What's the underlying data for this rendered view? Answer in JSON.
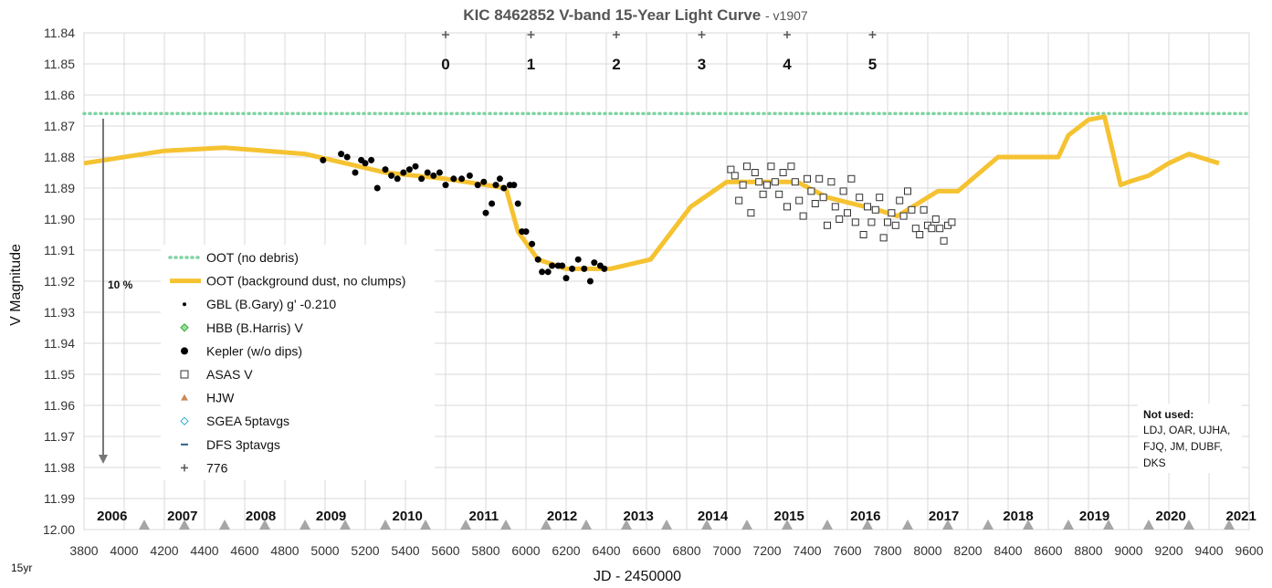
{
  "chart_data": {
    "type": "scatter",
    "title": "KIC 8462852 V-band 15-Year Light Curve",
    "title_suffix": "- v1907",
    "xlabel": "JD - 2450000",
    "ylabel": "V Magnitude",
    "xlim": [
      3800,
      9600
    ],
    "ylim": [
      12.0,
      11.84
    ],
    "y_inverted": true,
    "grid": true,
    "legend_placement": "lower-left",
    "x_ticks": [
      3800,
      4000,
      4200,
      4400,
      4600,
      4800,
      5000,
      5200,
      5400,
      5600,
      5800,
      6000,
      6200,
      6400,
      6600,
      6800,
      7000,
      7200,
      7400,
      7600,
      7800,
      8000,
      8200,
      8400,
      8600,
      8800,
      9000,
      9200,
      9400,
      9600
    ],
    "y_ticks": [
      11.84,
      11.85,
      11.86,
      11.87,
      11.88,
      11.89,
      11.9,
      11.91,
      11.92,
      11.93,
      11.94,
      11.95,
      11.96,
      11.97,
      11.98,
      11.99,
      12.0
    ],
    "scale_arrow_label": "10 %",
    "corner_note": "15yr",
    "not_used_title": "Not used:",
    "not_used_lines": [
      "LDJ, OAR, UJHA,",
      "FJQ, JM, DUBF,",
      "DKS"
    ],
    "epoch_markers": [
      {
        "x": 5560,
        "label": "0"
      },
      {
        "x": 5940,
        "label": "1"
      },
      {
        "x": 6320,
        "label": "2"
      },
      {
        "x": 6700,
        "label": "3"
      },
      {
        "x": 7080,
        "label": "4"
      },
      {
        "x": 7460,
        "label": "5"
      }
    ],
    "epoch_markers_note": "x values of the '+' (776) series in JD-2450000",
    "epoch_plus_x": [
      5600,
      6025,
      6450,
      6875,
      7300,
      7725
    ],
    "year_labels": [
      {
        "x": 3980,
        "label": "2006"
      },
      {
        "x": 4330,
        "label": "2007"
      },
      {
        "x": 4720,
        "label": "2008"
      },
      {
        "x": 5070,
        "label": "2009"
      },
      {
        "x": 5450,
        "label": "2010"
      },
      {
        "x": 5830,
        "label": "2011"
      },
      {
        "x": 6220,
        "label": "2012"
      },
      {
        "x": 6600,
        "label": "2013"
      },
      {
        "x": 6970,
        "label": "2014"
      },
      {
        "x": 7350,
        "label": "2015"
      },
      {
        "x": 7730,
        "label": "2016"
      },
      {
        "x": 8120,
        "label": "2017"
      },
      {
        "x": 8490,
        "label": "2018"
      },
      {
        "x": 8870,
        "label": "2019"
      },
      {
        "x": 9250,
        "label": "2020"
      },
      {
        "x": 9600,
        "label": "2021"
      }
    ],
    "year_triangles_x": [
      4100,
      4300,
      4500,
      4700,
      4900,
      5100,
      5300,
      5500,
      5700,
      5900,
      6100,
      6300,
      6500,
      6700,
      6900,
      7100,
      7300,
      7500,
      7700,
      7900,
      8100,
      8300,
      8500,
      8700,
      8900,
      9100,
      9300,
      9500
    ],
    "legend": [
      {
        "name": "OOT (no debris)",
        "marker": "dotted-line",
        "color": "#7fd3a3"
      },
      {
        "name": "OOT (background dust, no clumps)",
        "marker": "thick-line",
        "color": "#f5c231"
      },
      {
        "name": "GBL (B.Gary) g' -0.210",
        "marker": "small-dot",
        "color": "#000000"
      },
      {
        "name": "HBB (B.Harris) V",
        "marker": "diamond",
        "color": "#2aa52a"
      },
      {
        "name": "Kepler (w/o dips)",
        "marker": "big-dot",
        "color": "#000000"
      },
      {
        "name": "ASAS V",
        "marker": "open-square",
        "color": "#333333"
      },
      {
        "name": "HJW",
        "marker": "triangle",
        "color": "#c88a5a"
      },
      {
        "name": "SGEA 5ptavgs",
        "marker": "open-diamond",
        "color": "#2aa9d6"
      },
      {
        "name": "DFS 3ptavgs",
        "marker": "dash",
        "color": "#2c5f8a"
      },
      {
        "name": "776",
        "marker": "plus",
        "color": "#555555"
      }
    ],
    "series": [
      {
        "name": "OOT (no debris)",
        "kind": "hline",
        "y": 11.866
      },
      {
        "name": "OOT (background dust, no clumps)",
        "kind": "line",
        "x": [
          3800,
          4200,
          4500,
          4900,
          5300,
          5600,
          5900,
          5960,
          6060,
          6200,
          6420,
          6620,
          6820,
          7000,
          7200,
          7350,
          7500,
          7750,
          7850,
          8050,
          8150,
          8350,
          8450,
          8650,
          8700,
          8800,
          8880,
          8960,
          9000,
          9100,
          9200,
          9300,
          9450
        ],
        "y": [
          11.882,
          11.878,
          11.877,
          11.879,
          11.885,
          11.887,
          11.89,
          11.904,
          11.913,
          11.916,
          11.916,
          11.913,
          11.896,
          11.888,
          11.888,
          11.888,
          11.893,
          11.897,
          11.899,
          11.891,
          11.891,
          11.88,
          11.88,
          11.88,
          11.873,
          11.868,
          11.867,
          11.889,
          11.888,
          11.886,
          11.882,
          11.879,
          11.882
        ]
      },
      {
        "name": "Kepler (w/o dips)",
        "kind": "points",
        "x": [
          4990,
          5080,
          5110,
          5150,
          5180,
          5200,
          5230,
          5260,
          5300,
          5330,
          5360,
          5390,
          5420,
          5450,
          5480,
          5510,
          5540,
          5570,
          5600,
          5640,
          5680,
          5720,
          5760,
          5790,
          5800,
          5830,
          5850,
          5870,
          5890,
          5920,
          5940,
          5960,
          5980,
          6000,
          6030,
          6060,
          6080,
          6110,
          6130,
          6160,
          6180,
          6200,
          6230,
          6260,
          6290,
          6320,
          6340,
          6370,
          6390
        ],
        "y": [
          11.881,
          11.879,
          11.88,
          11.885,
          11.881,
          11.882,
          11.881,
          11.89,
          11.884,
          11.886,
          11.887,
          11.885,
          11.884,
          11.883,
          11.887,
          11.885,
          11.886,
          11.885,
          11.889,
          11.887,
          11.887,
          11.886,
          11.889,
          11.888,
          11.898,
          11.895,
          11.889,
          11.887,
          11.89,
          11.889,
          11.889,
          11.895,
          11.904,
          11.904,
          11.908,
          11.913,
          11.917,
          11.917,
          11.915,
          11.915,
          11.915,
          11.919,
          11.916,
          11.913,
          11.916,
          11.92,
          11.914,
          11.915,
          11.916
        ]
      },
      {
        "name": "ASAS V",
        "kind": "points",
        "x": [
          7020,
          7040,
          7060,
          7080,
          7100,
          7120,
          7140,
          7160,
          7180,
          7200,
          7220,
          7240,
          7260,
          7280,
          7300,
          7320,
          7340,
          7360,
          7380,
          7400,
          7420,
          7440,
          7460,
          7480,
          7500,
          7520,
          7540,
          7560,
          7580,
          7600,
          7620,
          7640,
          7660,
          7680,
          7700,
          7720,
          7740,
          7760,
          7780,
          7800,
          7820,
          7840,
          7860,
          7880,
          7900,
          7920,
          7940,
          7960,
          7980,
          8000,
          8020,
          8040,
          8060,
          8080,
          8100,
          8120
        ],
        "y": [
          11.884,
          11.886,
          11.894,
          11.889,
          11.883,
          11.898,
          11.885,
          11.888,
          11.892,
          11.889,
          11.883,
          11.888,
          11.892,
          11.885,
          11.896,
          11.883,
          11.888,
          11.894,
          11.899,
          11.887,
          11.891,
          11.895,
          11.887,
          11.893,
          11.902,
          11.888,
          11.896,
          11.9,
          11.891,
          11.898,
          11.887,
          11.901,
          11.893,
          11.905,
          11.896,
          11.901,
          11.897,
          11.893,
          11.906,
          11.901,
          11.898,
          11.902,
          11.894,
          11.899,
          11.891,
          11.897,
          11.903,
          11.905,
          11.897,
          11.902,
          11.903,
          11.9,
          11.903,
          11.907,
          11.902,
          11.901
        ]
      },
      {
        "name": "776",
        "kind": "points",
        "x": [
          5600,
          6025,
          6450,
          6875,
          7300,
          7725
        ],
        "y": [
          11.841,
          11.841,
          11.841,
          11.841,
          11.841,
          11.841
        ]
      }
    ]
  }
}
